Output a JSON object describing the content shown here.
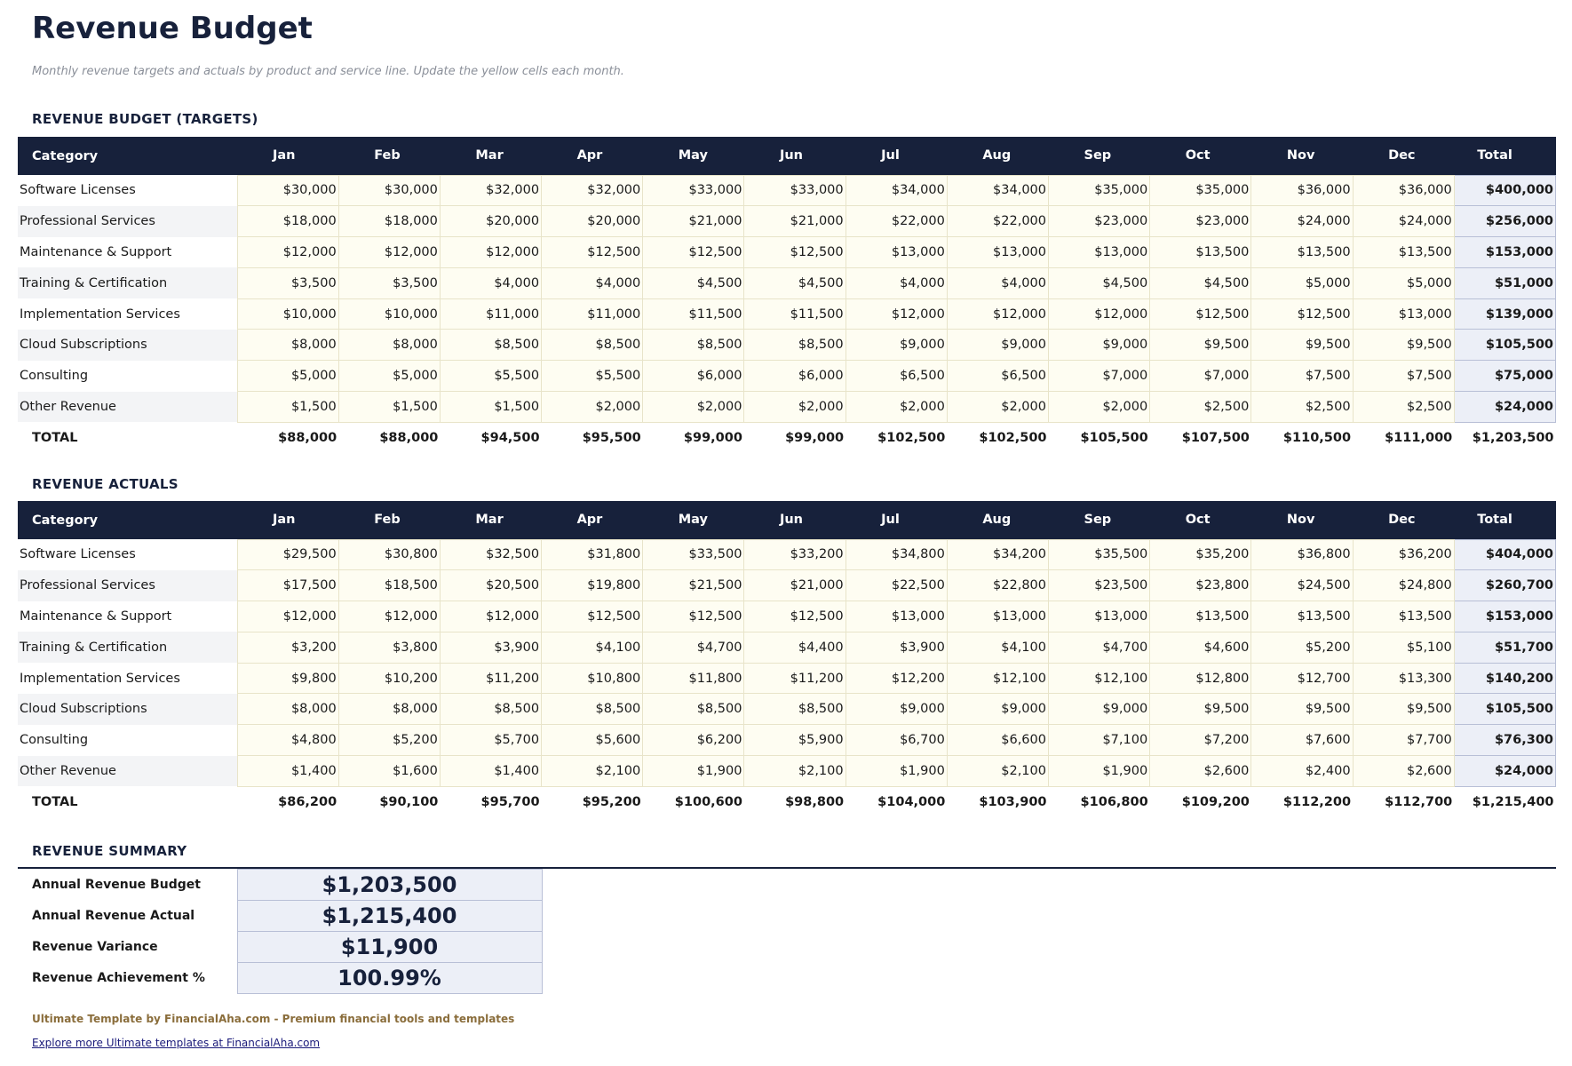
{
  "header": {
    "title": "Revenue Budget",
    "subtitle": "Monthly revenue targets and actuals by product and service line. Update the yellow cells each month."
  },
  "budget": {
    "heading": "REVENUE BUDGET (TARGETS)",
    "columns": [
      "Category",
      "Jan",
      "Feb",
      "Mar",
      "Apr",
      "May",
      "Jun",
      "Jul",
      "Aug",
      "Sep",
      "Oct",
      "Nov",
      "Dec",
      "Total"
    ],
    "rows": [
      [
        "Software Licenses",
        "$30,000",
        "$30,000",
        "$32,000",
        "$32,000",
        "$33,000",
        "$33,000",
        "$34,000",
        "$34,000",
        "$35,000",
        "$35,000",
        "$36,000",
        "$36,000",
        "$400,000"
      ],
      [
        "Professional Services",
        "$18,000",
        "$18,000",
        "$20,000",
        "$20,000",
        "$21,000",
        "$21,000",
        "$22,000",
        "$22,000",
        "$23,000",
        "$23,000",
        "$24,000",
        "$24,000",
        "$256,000"
      ],
      [
        "Maintenance & Support",
        "$12,000",
        "$12,000",
        "$12,000",
        "$12,500",
        "$12,500",
        "$12,500",
        "$13,000",
        "$13,000",
        "$13,000",
        "$13,500",
        "$13,500",
        "$13,500",
        "$153,000"
      ],
      [
        "Training & Certification",
        "$3,500",
        "$3,500",
        "$4,000",
        "$4,000",
        "$4,500",
        "$4,500",
        "$4,000",
        "$4,000",
        "$4,500",
        "$4,500",
        "$5,000",
        "$5,000",
        "$51,000"
      ],
      [
        "Implementation Services",
        "$10,000",
        "$10,000",
        "$11,000",
        "$11,000",
        "$11,500",
        "$11,500",
        "$12,000",
        "$12,000",
        "$12,000",
        "$12,500",
        "$12,500",
        "$13,000",
        "$139,000"
      ],
      [
        "Cloud Subscriptions",
        "$8,000",
        "$8,000",
        "$8,500",
        "$8,500",
        "$8,500",
        "$8,500",
        "$9,000",
        "$9,000",
        "$9,000",
        "$9,500",
        "$9,500",
        "$9,500",
        "$105,500"
      ],
      [
        "Consulting",
        "$5,000",
        "$5,000",
        "$5,500",
        "$5,500",
        "$6,000",
        "$6,000",
        "$6,500",
        "$6,500",
        "$7,000",
        "$7,000",
        "$7,500",
        "$7,500",
        "$75,000"
      ],
      [
        "Other Revenue",
        "$1,500",
        "$1,500",
        "$1,500",
        "$2,000",
        "$2,000",
        "$2,000",
        "$2,000",
        "$2,000",
        "$2,000",
        "$2,500",
        "$2,500",
        "$2,500",
        "$24,000"
      ]
    ],
    "total": [
      "TOTAL",
      "$88,000",
      "$88,000",
      "$94,500",
      "$95,500",
      "$99,000",
      "$99,000",
      "$102,500",
      "$102,500",
      "$105,500",
      "$107,500",
      "$110,500",
      "$111,000",
      "$1,203,500"
    ]
  },
  "actuals": {
    "heading": "REVENUE ACTUALS",
    "columns": [
      "Category",
      "Jan",
      "Feb",
      "Mar",
      "Apr",
      "May",
      "Jun",
      "Jul",
      "Aug",
      "Sep",
      "Oct",
      "Nov",
      "Dec",
      "Total"
    ],
    "rows": [
      [
        "Software Licenses",
        "$29,500",
        "$30,800",
        "$32,500",
        "$31,800",
        "$33,500",
        "$33,200",
        "$34,800",
        "$34,200",
        "$35,500",
        "$35,200",
        "$36,800",
        "$36,200",
        "$404,000"
      ],
      [
        "Professional Services",
        "$17,500",
        "$18,500",
        "$20,500",
        "$19,800",
        "$21,500",
        "$21,000",
        "$22,500",
        "$22,800",
        "$23,500",
        "$23,800",
        "$24,500",
        "$24,800",
        "$260,700"
      ],
      [
        "Maintenance & Support",
        "$12,000",
        "$12,000",
        "$12,000",
        "$12,500",
        "$12,500",
        "$12,500",
        "$13,000",
        "$13,000",
        "$13,000",
        "$13,500",
        "$13,500",
        "$13,500",
        "$153,000"
      ],
      [
        "Training & Certification",
        "$3,200",
        "$3,800",
        "$3,900",
        "$4,100",
        "$4,700",
        "$4,400",
        "$3,900",
        "$4,100",
        "$4,700",
        "$4,600",
        "$5,200",
        "$5,100",
        "$51,700"
      ],
      [
        "Implementation Services",
        "$9,800",
        "$10,200",
        "$11,200",
        "$10,800",
        "$11,800",
        "$11,200",
        "$12,200",
        "$12,100",
        "$12,100",
        "$12,800",
        "$12,700",
        "$13,300",
        "$140,200"
      ],
      [
        "Cloud Subscriptions",
        "$8,000",
        "$8,000",
        "$8,500",
        "$8,500",
        "$8,500",
        "$8,500",
        "$9,000",
        "$9,000",
        "$9,000",
        "$9,500",
        "$9,500",
        "$9,500",
        "$105,500"
      ],
      [
        "Consulting",
        "$4,800",
        "$5,200",
        "$5,700",
        "$5,600",
        "$6,200",
        "$5,900",
        "$6,700",
        "$6,600",
        "$7,100",
        "$7,200",
        "$7,600",
        "$7,700",
        "$76,300"
      ],
      [
        "Other Revenue",
        "$1,400",
        "$1,600",
        "$1,400",
        "$2,100",
        "$1,900",
        "$2,100",
        "$1,900",
        "$2,100",
        "$1,900",
        "$2,600",
        "$2,400",
        "$2,600",
        "$24,000"
      ]
    ],
    "total": [
      "TOTAL",
      "$86,200",
      "$90,100",
      "$95,700",
      "$95,200",
      "$100,600",
      "$98,800",
      "$104,000",
      "$103,900",
      "$106,800",
      "$109,200",
      "$112,200",
      "$112,700",
      "$1,215,400"
    ]
  },
  "summary": {
    "heading": "REVENUE SUMMARY",
    "rows": [
      [
        "Annual Revenue Budget",
        "$1,203,500"
      ],
      [
        "Annual Revenue Actual",
        "$1,215,400"
      ],
      [
        "Revenue Variance",
        "$11,900"
      ],
      [
        "Revenue Achievement %",
        "100.99%"
      ]
    ]
  },
  "footer": {
    "credit": "Ultimate Template by FinancialAha.com - Premium financial tools and templates",
    "link": "Explore more Ultimate templates at FinancialAha.com"
  }
}
